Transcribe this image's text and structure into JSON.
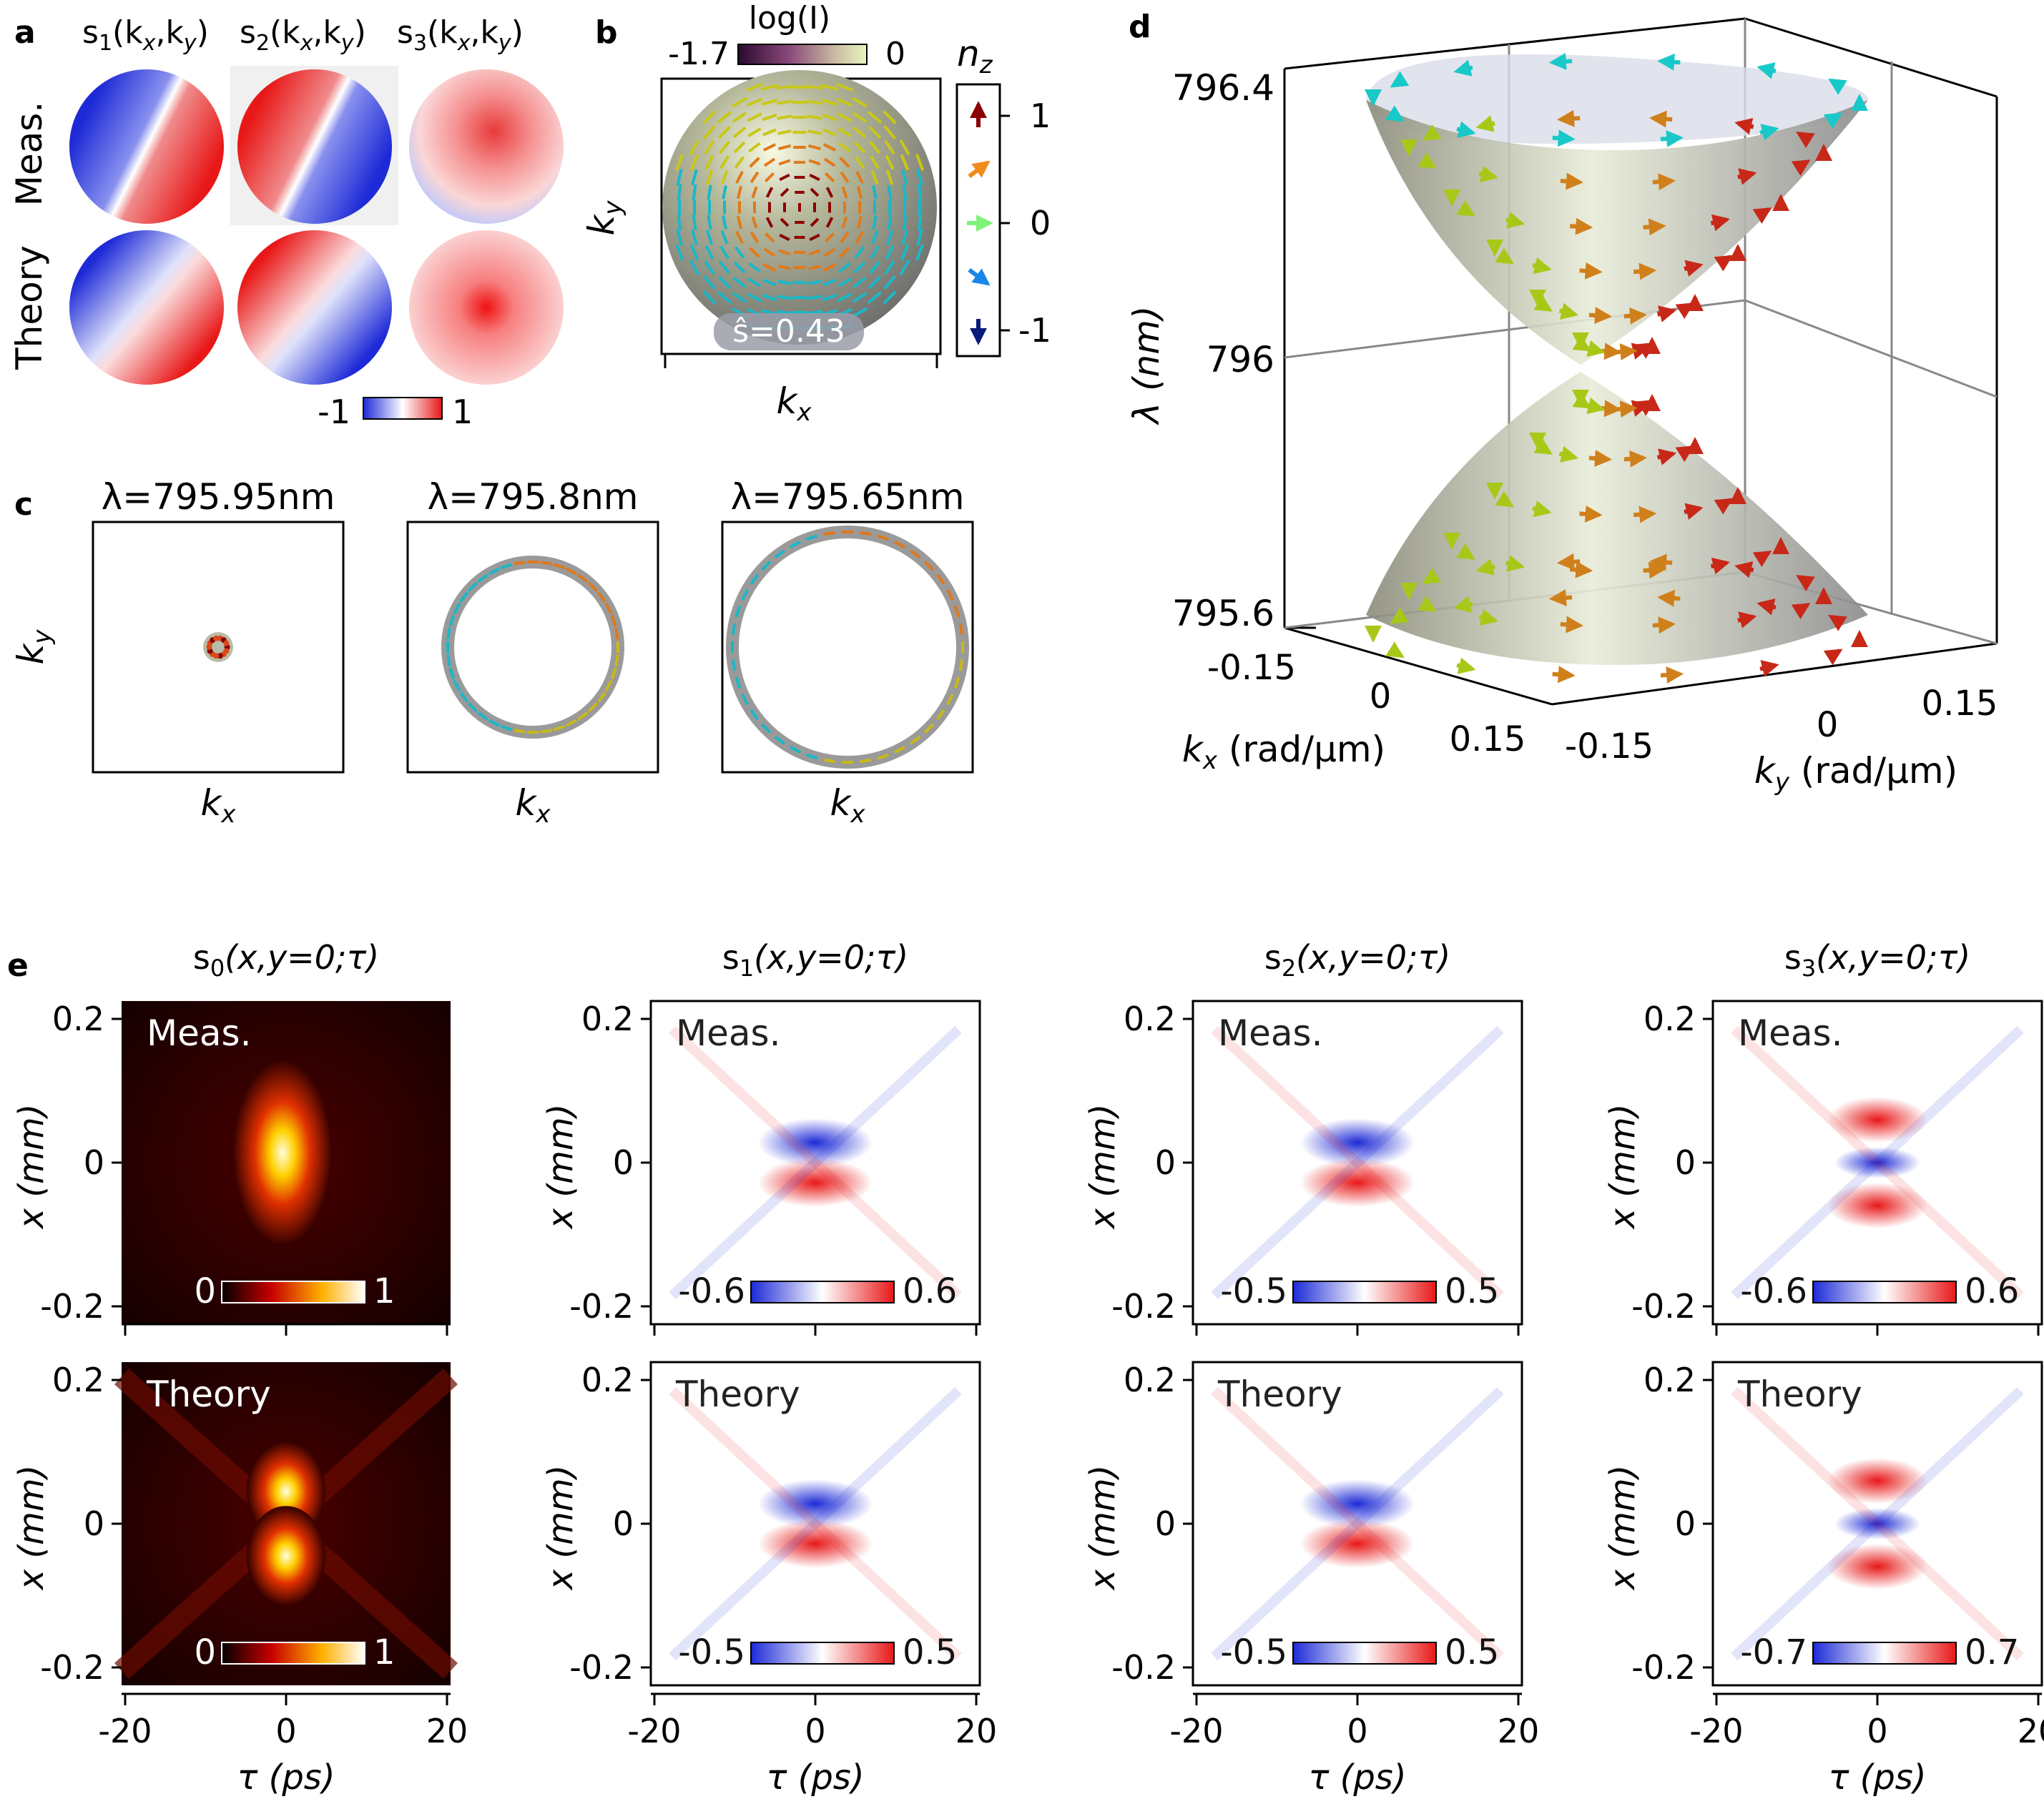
{
  "panel_labels": {
    "a": "a",
    "b": "b",
    "c": "c",
    "d": "d",
    "e": "e"
  },
  "panel_a": {
    "columns": [
      {
        "base": "s",
        "sub": "1",
        "args": "(k",
        "argsub1": "x",
        "mid": ",k",
        "argsub2": "y",
        "end": ")"
      },
      {
        "base": "s",
        "sub": "2",
        "args": "(k",
        "argsub1": "x",
        "mid": ",k",
        "argsub2": "y",
        "end": ")"
      },
      {
        "base": "s",
        "sub": "3",
        "args": "(k",
        "argsub1": "x",
        "mid": ",k",
        "argsub2": "y",
        "end": ")"
      }
    ],
    "rows": [
      "Meas.",
      "Theory"
    ],
    "colorbar": {
      "min": "-1",
      "max": "1"
    }
  },
  "panel_b": {
    "colorbar_title": "log(I)",
    "colorbar_min": "-1.7",
    "colorbar_max": "0",
    "ylabel": "k",
    "ylabel_sub": "y",
    "xlabel": "k",
    "xlabel_sub": "x",
    "annotation": "ŝ=0.43",
    "nz_title": "n",
    "nz_sub": "z",
    "nz_ticks": [
      "1",
      "0",
      "-1"
    ]
  },
  "panel_c": {
    "subplots": [
      {
        "title": "λ=795.95nm",
        "ring_radius_fraction": 0.12
      },
      {
        "title": "λ=795.8nm",
        "ring_radius_fraction": 0.68
      },
      {
        "title": "λ=795.65nm",
        "ring_radius_fraction": 0.92
      }
    ],
    "ylabel": "k",
    "ylabel_sub": "y",
    "xlabel": "k",
    "xlabel_sub": "x"
  },
  "panel_d": {
    "zlabel": "λ (nm)",
    "zticks": [
      "796.4",
      "796",
      "795.6"
    ],
    "kx_ticks": [
      "-0.15",
      "0",
      "0.15"
    ],
    "ky_ticks": [
      "-0.15",
      "0",
      "0.15"
    ],
    "kx_label": "k",
    "kx_sub": "x",
    "kx_unit": " (rad/μm)",
    "ky_label": "k",
    "ky_sub": "y",
    "ky_unit": " (rad/μm)"
  },
  "panel_e": {
    "columns": [
      {
        "base": "s",
        "sub": "0",
        "rest": "(x,y=0;τ)",
        "cbar_meas": [
          "0",
          "1"
        ],
        "cbar_theory": [
          "0",
          "1"
        ]
      },
      {
        "base": "s",
        "sub": "1",
        "rest": "(x,y=0;τ)",
        "cbar_meas": [
          "-0.6",
          "0.6"
        ],
        "cbar_theory": [
          "-0.5",
          "0.5"
        ]
      },
      {
        "base": "s",
        "sub": "2",
        "rest": "(x,y=0;τ)",
        "cbar_meas": [
          "-0.5",
          "0.5"
        ],
        "cbar_theory": [
          "-0.5",
          "0.5"
        ]
      },
      {
        "base": "s",
        "sub": "3",
        "rest": "(x,y=0;τ)",
        "cbar_meas": [
          "-0.6",
          "0.6"
        ],
        "cbar_theory": [
          "-0.7",
          "0.7"
        ]
      }
    ],
    "row_labels": [
      "Meas.",
      "Theory"
    ],
    "yticks": [
      "0.2",
      "0",
      "-0.2"
    ],
    "ylabel": "x (mm)",
    "xticks": [
      "-20",
      "0",
      "20"
    ],
    "xlabel": "τ (ps)"
  },
  "colors": {
    "blue": "#1f2bd8",
    "red": "#e81c1c",
    "arrow_up": "#8b0000",
    "arrow_mid_up": "#f08a1a",
    "arrow_zero": "#7ff27a",
    "arrow_mid_down": "#1a86e8",
    "arrow_down": "#0a1a7a"
  }
}
